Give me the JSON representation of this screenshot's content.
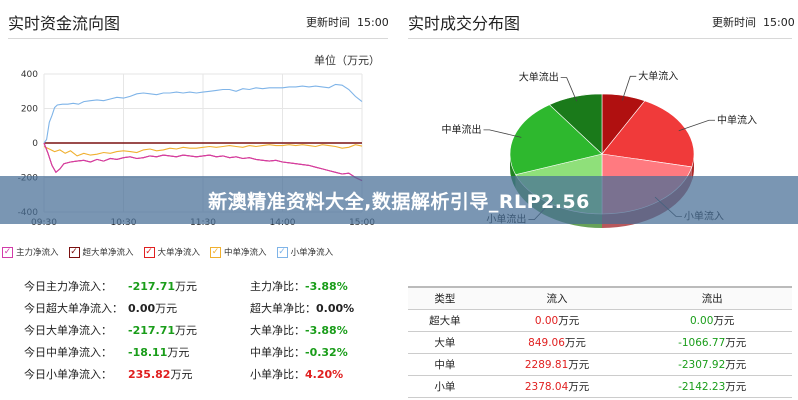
{
  "left": {
    "title": "实时资金流向图",
    "update_label": "更新时间",
    "update_time": "15:00",
    "unit_label": "单位（万元）",
    "legend": [
      {
        "label": "主力净流入",
        "color": "#d23ca9"
      },
      {
        "label": "超大单净流入",
        "color": "#7a1010"
      },
      {
        "label": "大单净流入",
        "color": "#e02020"
      },
      {
        "label": "中单净流入",
        "color": "#f0b030"
      },
      {
        "label": "小单净流入",
        "color": "#7fb4e8"
      }
    ],
    "stats_left": [
      {
        "label": "今日主力净流入：",
        "value": "-217.71",
        "unit": "万元",
        "tone": "neg"
      },
      {
        "label": "今日超大单净流入：",
        "value": "0.00",
        "unit": "万元",
        "tone": "zero"
      },
      {
        "label": "今日大单净流入：",
        "value": "-217.71",
        "unit": "万元",
        "tone": "neg"
      },
      {
        "label": "今日中单净流入：",
        "value": "-18.11",
        "unit": "万元",
        "tone": "neg"
      },
      {
        "label": "今日小单净流入：",
        "value": "235.82",
        "unit": "万元",
        "tone": "pos"
      }
    ],
    "stats_right": [
      {
        "label": "主力净比：",
        "value": "-3.88%",
        "tone": "neg"
      },
      {
        "label": "超大单净比：",
        "value": "0.00%",
        "tone": "zero"
      },
      {
        "label": "大单净比：",
        "value": "-3.88%",
        "tone": "neg"
      },
      {
        "label": "中单净比：",
        "value": "-0.32%",
        "tone": "neg"
      },
      {
        "label": "小单净比：",
        "value": "4.20%",
        "tone": "pos"
      }
    ]
  },
  "right": {
    "title": "实时成交分布图",
    "update_label": "更新时间",
    "update_time": "15:00",
    "table": {
      "headers": [
        "类型",
        "流入",
        "流出"
      ],
      "rows": [
        {
          "type": "超大单",
          "in": "0.00",
          "in_unit": "万元",
          "out": "0.00",
          "out_unit": "万元"
        },
        {
          "type": "大单",
          "in": "849.06",
          "in_unit": "万元",
          "out": "-1066.77",
          "out_unit": "万元"
        },
        {
          "type": "中单",
          "in": "2289.81",
          "in_unit": "万元",
          "out": "-2307.92",
          "out_unit": "万元"
        },
        {
          "type": "小单",
          "in": "2378.04",
          "in_unit": "万元",
          "out": "-2142.23",
          "out_unit": "万元"
        }
      ]
    }
  },
  "banner": {
    "text": "新澳精准资料大全,数据解析引导_RLP2.56"
  },
  "chart_data": [
    {
      "type": "line",
      "ylim": [
        -400,
        400
      ],
      "yticks": [
        400,
        200,
        0,
        -200,
        -400
      ],
      "xticks": [
        "09:30",
        "10:30",
        "11:30",
        "14:00",
        "15:00"
      ],
      "series": [
        {
          "name": "小单净流入",
          "color": "#7fb4e8",
          "x": [
            0,
            2,
            4,
            6,
            8,
            10,
            14,
            18,
            22,
            26,
            30,
            35,
            40,
            45,
            50,
            55,
            60,
            65,
            70,
            75,
            80,
            85,
            90,
            95,
            100,
            105,
            110,
            115,
            120,
            125,
            130,
            135,
            140,
            145,
            150,
            155,
            160,
            165,
            170,
            175,
            180,
            185,
            190,
            195,
            200,
            205,
            210,
            215,
            220,
            225,
            230,
            235,
            240
          ],
          "values": [
            0,
            20,
            120,
            160,
            205,
            220,
            225,
            225,
            230,
            225,
            240,
            245,
            250,
            245,
            255,
            265,
            260,
            270,
            285,
            290,
            285,
            280,
            290,
            290,
            295,
            290,
            295,
            290,
            295,
            300,
            305,
            310,
            310,
            300,
            315,
            310,
            320,
            315,
            320,
            320,
            320,
            325,
            325,
            330,
            325,
            330,
            325,
            320,
            340,
            335,
            310,
            270,
            240
          ]
        },
        {
          "name": "中单净流入",
          "color": "#f0b030",
          "x": [
            0,
            4,
            8,
            12,
            16,
            20,
            25,
            30,
            35,
            40,
            45,
            50,
            55,
            60,
            65,
            70,
            75,
            80,
            85,
            90,
            95,
            100,
            105,
            110,
            115,
            120,
            125,
            130,
            135,
            140,
            145,
            150,
            155,
            160,
            165,
            170,
            175,
            180,
            185,
            190,
            195,
            200,
            205,
            210,
            215,
            220,
            225,
            230,
            235,
            240
          ],
          "values": [
            -20,
            -35,
            -50,
            -40,
            -60,
            -45,
            -75,
            -60,
            -70,
            -65,
            -55,
            -60,
            -50,
            -45,
            -50,
            -55,
            -40,
            -35,
            -45,
            -40,
            -30,
            -35,
            -25,
            -30,
            -30,
            -25,
            -20,
            -25,
            -20,
            -15,
            -20,
            -25,
            -15,
            -20,
            -15,
            -10,
            -15,
            -15,
            -10,
            -15,
            -10,
            -15,
            -20,
            -10,
            -15,
            -20,
            -30,
            -25,
            -10,
            -18
          ]
        },
        {
          "name": "大单净流入",
          "color": "#e02020",
          "x": [
            0,
            3,
            6,
            9,
            12,
            15,
            20,
            25,
            30,
            35,
            40,
            45,
            50,
            55,
            60,
            65,
            70,
            75,
            80,
            85,
            90,
            95,
            100,
            105,
            110,
            115,
            120,
            125,
            130,
            135,
            140,
            145,
            150,
            155,
            160,
            165,
            170,
            175,
            180,
            185,
            190,
            195,
            200,
            205,
            210,
            215,
            220,
            225,
            230,
            235,
            240
          ],
          "values": [
            0,
            -60,
            -130,
            -170,
            -150,
            -120,
            -110,
            -105,
            -100,
            -110,
            -95,
            -105,
            -90,
            -95,
            -85,
            -80,
            -90,
            -85,
            -75,
            -80,
            -70,
            -75,
            -80,
            -70,
            -75,
            -80,
            -75,
            -70,
            -80,
            -75,
            -85,
            -80,
            -90,
            -85,
            -95,
            -100,
            -105,
            -100,
            -110,
            -115,
            -120,
            -125,
            -130,
            -140,
            -150,
            -160,
            -170,
            -180,
            -175,
            -200,
            -218
          ]
        },
        {
          "name": "主力净流入",
          "color": "#d23ca9",
          "x": [
            0,
            3,
            6,
            9,
            12,
            15,
            20,
            25,
            30,
            35,
            40,
            45,
            50,
            55,
            60,
            65,
            70,
            75,
            80,
            85,
            90,
            95,
            100,
            105,
            110,
            115,
            120,
            125,
            130,
            135,
            140,
            145,
            150,
            155,
            160,
            165,
            170,
            175,
            180,
            185,
            190,
            195,
            200,
            205,
            210,
            215,
            220,
            225,
            230,
            235,
            240
          ],
          "values": [
            0,
            -60,
            -130,
            -170,
            -150,
            -120,
            -110,
            -105,
            -100,
            -110,
            -95,
            -105,
            -90,
            -95,
            -85,
            -80,
            -90,
            -85,
            -75,
            -80,
            -70,
            -75,
            -80,
            -70,
            -75,
            -80,
            -75,
            -70,
            -80,
            -75,
            -85,
            -80,
            -90,
            -85,
            -95,
            -100,
            -105,
            -100,
            -110,
            -115,
            -120,
            -125,
            -130,
            -140,
            -150,
            -160,
            -170,
            -180,
            -175,
            -200,
            -218
          ]
        },
        {
          "name": "超大单净流入",
          "color": "#7a1010",
          "x": [
            0,
            240
          ],
          "values": [
            0,
            0
          ]
        }
      ]
    },
    {
      "type": "pie",
      "slices": [
        {
          "label": "大单流入",
          "value": 849.06,
          "color": "#b01010"
        },
        {
          "label": "中单流入",
          "value": 2289.81,
          "color": "#f03a3a"
        },
        {
          "label": "小单流入",
          "value": 2378.04,
          "color": "#ff7a80"
        },
        {
          "label": "小单流出",
          "value": 2142.23,
          "color": "#8fe07a"
        },
        {
          "label": "中单流出",
          "value": 2307.92,
          "color": "#2eb82e"
        },
        {
          "label": "大单流出",
          "value": 1066.77,
          "color": "#1a7a1a"
        }
      ]
    }
  ]
}
